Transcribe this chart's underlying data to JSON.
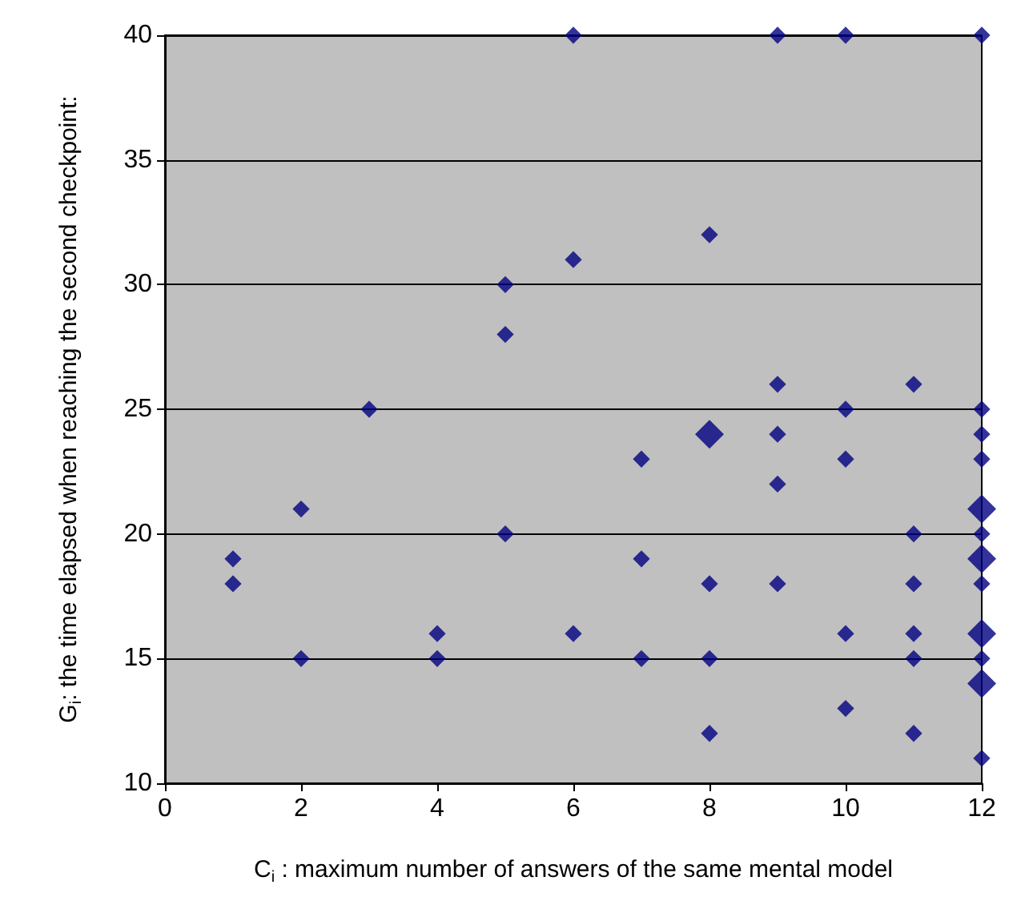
{
  "chart_data": {
    "type": "bubble",
    "xlabel": "C$_{i}$ : maximum number of answers of the same mental model",
    "ylabel": "G$_{i}$: the time elapsed when reaching the second checkpoint:",
    "x": [
      1,
      1,
      2,
      2,
      3,
      4,
      4,
      5,
      5,
      5,
      6,
      6,
      6,
      7,
      7,
      7,
      8,
      8,
      8,
      8,
      8,
      9,
      9,
      9,
      9,
      9,
      10,
      10,
      10,
      10,
      10,
      11,
      11,
      11,
      11,
      11,
      11,
      12,
      12,
      12,
      12,
      12,
      12,
      12,
      12,
      12,
      12,
      12,
      12
    ],
    "values": [
      19,
      18,
      21,
      15,
      25,
      16,
      15,
      30,
      28,
      20,
      40,
      31,
      16,
      23,
      19,
      15,
      32,
      24,
      18,
      15,
      12,
      40,
      26,
      24,
      22,
      18,
      40,
      25,
      23,
      16,
      13,
      26,
      20,
      18,
      16,
      15,
      12,
      40,
      25,
      24,
      23,
      21,
      20,
      19,
      18,
      16,
      15,
      14,
      11
    ],
    "sizes": [
      0.35,
      0.35,
      0.35,
      0.35,
      0.35,
      0.35,
      0.35,
      0.35,
      0.35,
      0.35,
      0.35,
      0.35,
      0.35,
      0.35,
      0.35,
      0.35,
      0.35,
      1,
      0.35,
      0.35,
      0.35,
      0.35,
      0.35,
      0.35,
      0.35,
      0.35,
      0.35,
      0.35,
      0.35,
      0.35,
      0.35,
      0.35,
      0.35,
      0.35,
      0.35,
      0.35,
      0.35,
      0.35,
      0.35,
      0.35,
      0.35,
      1,
      0.35,
      1,
      0.35,
      1,
      0.35,
      1,
      0.35
    ],
    "color": "#000080",
    "marker": "diamond",
    "xlim": [
      0,
      12
    ],
    "xticks": [
      0,
      2,
      4,
      6,
      8,
      10,
      12
    ],
    "ylim": [
      10,
      40
    ],
    "yticks": [
      10,
      15,
      20,
      25,
      30,
      35,
      40
    ],
    "grid": "y"
  }
}
